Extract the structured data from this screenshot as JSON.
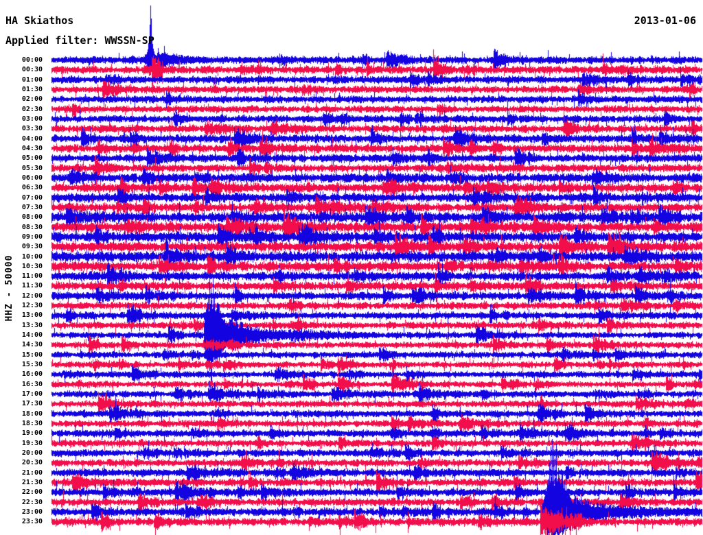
{
  "header": {
    "station": "HA Skiathos",
    "filter": "Applied filter: WWSSN-SP",
    "date": "2013-01-06",
    "channel_scale": "HHZ - 50000"
  },
  "chart_data": {
    "type": "seismogram-helicorder",
    "title": "HA Skiathos",
    "date": "2013-01-06",
    "applied_filter": "WWSSN-SP",
    "channel": "HHZ",
    "scale": 50000,
    "minutes_per_line": 30,
    "time_axis_start": "00:00",
    "time_axis_end": "23:30",
    "colors": {
      "even_rows": "#1203e0",
      "odd_rows": "#f20d4b",
      "text": "#000000",
      "background": "#ffffff"
    },
    "rows": [
      {
        "time": "00:00",
        "color": "blue",
        "noise": 4.2
      },
      {
        "time": "00:30",
        "color": "red",
        "noise": 4.2
      },
      {
        "time": "01:00",
        "color": "blue",
        "noise": 4.2
      },
      {
        "time": "01:30",
        "color": "red",
        "noise": 4.0
      },
      {
        "time": "02:00",
        "color": "blue",
        "noise": 4.0
      },
      {
        "time": "02:30",
        "color": "red",
        "noise": 3.8
      },
      {
        "time": "03:00",
        "color": "blue",
        "noise": 4.0
      },
      {
        "time": "03:30",
        "color": "red",
        "noise": 4.2
      },
      {
        "time": "04:00",
        "color": "blue",
        "noise": 4.4
      },
      {
        "time": "04:30",
        "color": "red",
        "noise": 4.4
      },
      {
        "time": "05:00",
        "color": "blue",
        "noise": 4.4
      },
      {
        "time": "05:30",
        "color": "red",
        "noise": 4.4
      },
      {
        "time": "06:00",
        "color": "blue",
        "noise": 5.0
      },
      {
        "time": "06:30",
        "color": "red",
        "noise": 5.0
      },
      {
        "time": "07:00",
        "color": "blue",
        "noise": 5.0
      },
      {
        "time": "07:30",
        "color": "red",
        "noise": 4.8
      },
      {
        "time": "08:00",
        "color": "blue",
        "noise": 5.6
      },
      {
        "time": "08:30",
        "color": "red",
        "noise": 5.4
      },
      {
        "time": "09:00",
        "color": "blue",
        "noise": 5.6
      },
      {
        "time": "09:30",
        "color": "red",
        "noise": 5.4
      },
      {
        "time": "10:00",
        "color": "blue",
        "noise": 5.8
      },
      {
        "time": "10:30",
        "color": "red",
        "noise": 5.2
      },
      {
        "time": "11:00",
        "color": "blue",
        "noise": 5.0
      },
      {
        "time": "11:30",
        "color": "red",
        "noise": 4.6
      },
      {
        "time": "12:00",
        "color": "blue",
        "noise": 4.2
      },
      {
        "time": "12:30",
        "color": "red",
        "noise": 4.0
      },
      {
        "time": "13:00",
        "color": "blue",
        "noise": 4.0
      },
      {
        "time": "13:30",
        "color": "red",
        "noise": 3.8
      },
      {
        "time": "14:00",
        "color": "blue",
        "noise": 3.6
      },
      {
        "time": "14:30",
        "color": "red",
        "noise": 3.6
      },
      {
        "time": "15:00",
        "color": "blue",
        "noise": 3.6
      },
      {
        "time": "15:30",
        "color": "red",
        "noise": 3.4
      },
      {
        "time": "16:00",
        "color": "blue",
        "noise": 3.6
      },
      {
        "time": "16:30",
        "color": "red",
        "noise": 3.4
      },
      {
        "time": "17:00",
        "color": "blue",
        "noise": 3.8
      },
      {
        "time": "17:30",
        "color": "red",
        "noise": 3.6
      },
      {
        "time": "18:00",
        "color": "blue",
        "noise": 3.8
      },
      {
        "time": "18:30",
        "color": "red",
        "noise": 3.8
      },
      {
        "time": "19:00",
        "color": "blue",
        "noise": 4.0
      },
      {
        "time": "19:30",
        "color": "red",
        "noise": 3.8
      },
      {
        "time": "20:00",
        "color": "blue",
        "noise": 4.2
      },
      {
        "time": "20:30",
        "color": "red",
        "noise": 4.0
      },
      {
        "time": "21:00",
        "color": "blue",
        "noise": 4.4
      },
      {
        "time": "21:30",
        "color": "red",
        "noise": 4.2
      },
      {
        "time": "22:00",
        "color": "blue",
        "noise": 4.4
      },
      {
        "time": "22:30",
        "color": "red",
        "noise": 4.2
      },
      {
        "time": "23:00",
        "color": "blue",
        "noise": 4.4
      },
      {
        "time": "23:30",
        "color": "red",
        "noise": 4.4
      }
    ],
    "events": [
      {
        "id": "e1",
        "time_approx": "00:05",
        "row_time": "00:00",
        "x_frac": 0.152,
        "description": "Large impulsive event, amplitude clipped at top edge of plot"
      },
      {
        "id": "e2",
        "time_approx": "14:07",
        "row_time": "14:00",
        "x_frac": 0.245,
        "description": "Strong event with tall clipped spikes crossing several lines and a long decaying coda"
      },
      {
        "id": "e3",
        "time_approx": "23:20",
        "row_time": "23:00",
        "x_frac": 0.773,
        "description": "Large event near end of day, dense low-frequency coda clipped at bottom edge"
      }
    ]
  }
}
